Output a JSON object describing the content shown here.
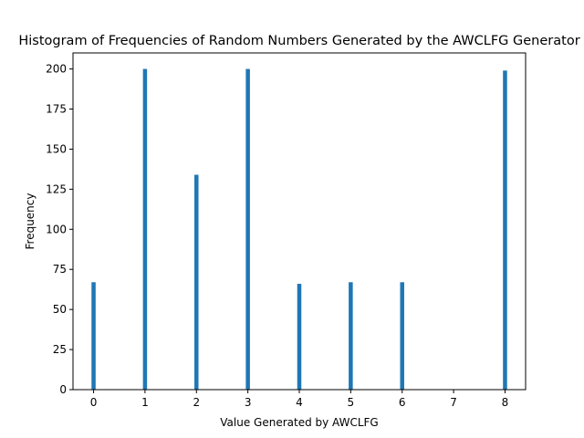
{
  "chart_data": {
    "type": "bar",
    "title": "Histogram of Frequencies of Random Numbers Generated by the AWCLFG Generator",
    "xlabel": "Value Generated by AWCLFG",
    "ylabel": "Frequency",
    "x": [
      0,
      1,
      2,
      3,
      4,
      5,
      6,
      8
    ],
    "values": [
      67,
      200,
      134,
      200,
      66,
      67,
      67,
      199
    ],
    "bar_width": 0.08,
    "xlim": [
      -0.4,
      8.4
    ],
    "ylim": [
      0,
      210
    ],
    "xticks": [
      0,
      1,
      2,
      3,
      4,
      5,
      6,
      7,
      8
    ],
    "yticks": [
      0,
      25,
      50,
      75,
      100,
      125,
      150,
      175,
      200
    ],
    "bar_color": "#1f77b4",
    "grid": false,
    "legend": "none"
  }
}
